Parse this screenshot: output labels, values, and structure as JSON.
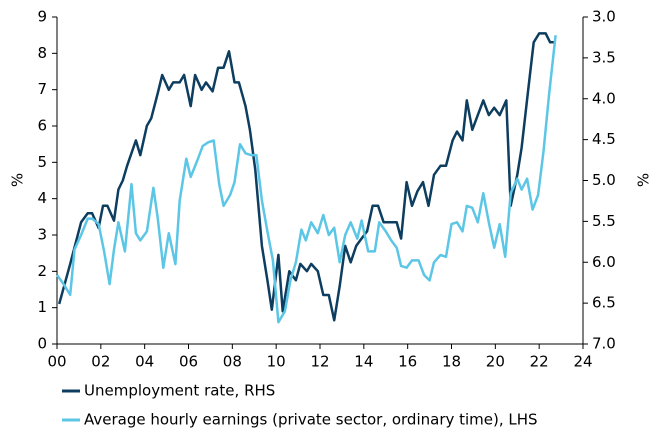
{
  "chart_data": {
    "type": "line",
    "ylabel": "%",
    "y2label": "%",
    "xlim": [
      0,
      24
    ],
    "xticks": [
      {
        "value": 0,
        "label": "00"
      },
      {
        "value": 2,
        "label": "02"
      },
      {
        "value": 4,
        "label": "04"
      },
      {
        "value": 6,
        "label": "06"
      },
      {
        "value": 8,
        "label": "08"
      },
      10,
      12,
      14,
      16,
      18,
      20,
      22,
      24
    ],
    "ylim": [
      0,
      9
    ],
    "yticks": [
      0,
      1,
      2,
      3,
      4,
      5,
      6,
      7,
      8,
      9
    ],
    "y2lim": [
      7,
      3
    ],
    "y2ticks": [
      {
        "value": 3,
        "label": "3.0"
      },
      3.5,
      {
        "value": 4,
        "label": "4.0"
      },
      4.5,
      {
        "value": 5,
        "label": "5.0"
      },
      5.5,
      {
        "value": 6,
        "label": "6.0"
      },
      6.5,
      {
        "value": 7,
        "label": "7.0"
      }
    ],
    "legend": "bottom",
    "series": [
      {
        "name": "Unemployment rate, RHS",
        "color": "#0d3d5f",
        "axis": "y2",
        "x": [
          0.1,
          0.6,
          1.1,
          1.4,
          1.6,
          1.9,
          2.1,
          2.3,
          2.6,
          2.8,
          3.0,
          3.2,
          3.6,
          3.8,
          4.1,
          4.3,
          4.6,
          4.8,
          5.1,
          5.3,
          5.6,
          5.8,
          6.1,
          6.3,
          6.6,
          6.8,
          7.1,
          7.35,
          7.6,
          7.85,
          8.1,
          8.3,
          8.6,
          8.8,
          9.05,
          9.35,
          9.6,
          9.8,
          10.1,
          10.3,
          10.6,
          10.9,
          11.1,
          11.4,
          11.6,
          11.9,
          12.15,
          12.4,
          12.65,
          12.9,
          13.15,
          13.4,
          13.65,
          13.9,
          14.15,
          14.4,
          14.65,
          14.9,
          15.2,
          15.5,
          15.7,
          15.95,
          16.2,
          16.45,
          16.7,
          16.95,
          17.2,
          17.5,
          17.75,
          18.05,
          18.25,
          18.5,
          18.7,
          18.95,
          19.2,
          19.45,
          19.7,
          19.95,
          20.2,
          20.5,
          20.7,
          21.0,
          21.2,
          21.5,
          21.75,
          22.0,
          22.3,
          22.5,
          22.75
        ],
        "values": [
          6.51,
          6.02,
          5.51,
          5.4,
          5.4,
          5.58,
          5.31,
          5.31,
          5.49,
          5.11,
          5.0,
          4.82,
          4.51,
          4.69,
          4.33,
          4.24,
          3.93,
          3.71,
          3.89,
          3.8,
          3.8,
          3.71,
          4.09,
          3.71,
          3.89,
          3.8,
          3.91,
          3.62,
          3.62,
          3.42,
          3.8,
          3.8,
          4.09,
          4.38,
          4.87,
          5.8,
          6.22,
          6.58,
          5.91,
          6.6,
          6.11,
          6.22,
          6.02,
          6.11,
          6.02,
          6.11,
          6.4,
          6.4,
          6.71,
          6.29,
          5.8,
          6.0,
          5.8,
          5.71,
          5.62,
          5.31,
          5.31,
          5.51,
          5.51,
          5.51,
          5.71,
          5.02,
          5.31,
          5.13,
          5.02,
          5.31,
          4.93,
          4.82,
          4.82,
          4.51,
          4.4,
          4.51,
          4.02,
          4.38,
          4.2,
          4.02,
          4.2,
          4.11,
          4.2,
          4.02,
          5.31,
          4.93,
          4.6,
          3.89,
          3.31,
          3.2,
          3.2,
          3.31,
          3.31
        ]
      },
      {
        "name": "Average hourly earnings (private sector, ordinary time), LHS",
        "color": "#5cc6e6",
        "x": [
          0,
          0.3,
          0.6,
          0.8,
          1.1,
          1.4,
          1.6,
          1.9,
          2.15,
          2.4,
          2.6,
          2.8,
          3.1,
          3.4,
          3.6,
          3.8,
          4.1,
          4.4,
          4.6,
          4.85,
          5.1,
          5.4,
          5.6,
          5.9,
          6.1,
          6.4,
          6.65,
          6.9,
          7.15,
          7.4,
          7.6,
          7.9,
          8.1,
          8.35,
          8.6,
          8.85,
          9.1,
          9.35,
          9.6,
          9.85,
          10.1,
          10.4,
          10.65,
          10.9,
          11.15,
          11.35,
          11.6,
          11.9,
          12.15,
          12.4,
          12.65,
          12.9,
          13.15,
          13.4,
          13.7,
          13.9,
          14.2,
          14.5,
          14.7,
          15.0,
          15.25,
          15.5,
          15.7,
          15.95,
          16.2,
          16.5,
          16.75,
          17.0,
          17.2,
          17.5,
          17.75,
          18.0,
          18.25,
          18.5,
          18.7,
          18.95,
          19.2,
          19.45,
          19.7,
          19.95,
          20.2,
          20.45,
          20.7,
          21.0,
          21.2,
          21.45,
          21.7,
          21.95,
          22.2,
          22.45,
          22.75
        ],
        "values": [
          1.9,
          1.65,
          1.35,
          2.6,
          3.0,
          3.45,
          3.45,
          3.3,
          2.55,
          1.65,
          2.6,
          3.35,
          2.55,
          4.4,
          3.05,
          2.85,
          3.1,
          4.3,
          3.45,
          2.1,
          3.05,
          2.2,
          3.95,
          5.1,
          4.6,
          5.05,
          5.45,
          5.55,
          5.6,
          4.4,
          3.8,
          4.1,
          4.45,
          5.5,
          5.25,
          5.2,
          5.2,
          3.95,
          3.1,
          2.3,
          0.6,
          0.9,
          1.75,
          2.25,
          3.15,
          2.85,
          3.35,
          3.05,
          3.55,
          3.0,
          3.2,
          2.25,
          3.0,
          3.35,
          2.9,
          3.4,
          2.55,
          2.55,
          3.35,
          3.1,
          2.85,
          2.65,
          2.15,
          2.1,
          2.3,
          2.3,
          1.9,
          1.75,
          2.25,
          2.45,
          2.4,
          3.3,
          3.35,
          3.1,
          3.8,
          3.75,
          3.35,
          4.15,
          3.35,
          2.65,
          3.3,
          2.4,
          4.15,
          4.55,
          4.25,
          4.55,
          3.7,
          4.1,
          5.3,
          6.85,
          8.5
        ]
      }
    ]
  }
}
